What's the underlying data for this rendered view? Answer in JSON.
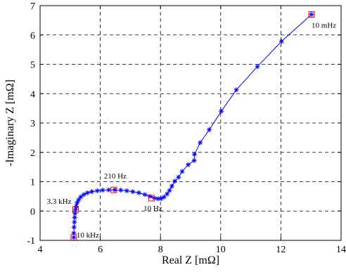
{
  "chart_data": {
    "type": "line",
    "title": "",
    "xlabel": "Real Z [mΩ]",
    "ylabel": "-Imaginary Z [mΩ]",
    "xlim": [
      4,
      14
    ],
    "ylim": [
      -1,
      7
    ],
    "xticks": [
      "4",
      "6",
      "8",
      "10",
      "12",
      "14"
    ],
    "yticks": [
      "-1",
      "0",
      "1",
      "2",
      "3",
      "4",
      "5",
      "6",
      "7"
    ],
    "grid": true,
    "grid_style": "dashed",
    "series": [
      {
        "marker": "asterisk",
        "color": "#0000ff",
        "x": [
          5.12,
          5.12,
          5.13,
          5.14,
          5.15,
          5.16,
          5.18,
          5.2,
          5.23,
          5.28,
          5.35,
          5.45,
          5.57,
          5.72,
          5.9,
          6.08,
          6.28,
          6.48,
          6.68,
          6.88,
          7.08,
          7.28,
          7.48,
          7.65,
          7.8,
          7.92,
          8.02,
          8.12,
          8.22,
          8.3,
          8.38,
          8.48,
          8.6,
          8.72,
          8.92,
          9.12,
          9.13,
          9.32,
          9.62,
          10.02,
          10.52,
          11.22,
          12.02,
          13.02
        ],
        "y": [
          -0.9,
          -0.75,
          -0.55,
          -0.38,
          -0.22,
          -0.08,
          0.05,
          0.16,
          0.28,
          0.38,
          0.48,
          0.56,
          0.62,
          0.66,
          0.69,
          0.71,
          0.72,
          0.72,
          0.71,
          0.69,
          0.66,
          0.62,
          0.56,
          0.5,
          0.44,
          0.42,
          0.42,
          0.48,
          0.58,
          0.7,
          0.85,
          1.02,
          1.15,
          1.35,
          1.58,
          1.72,
          1.93,
          2.33,
          2.77,
          3.4,
          4.13,
          4.92,
          5.78,
          6.7
        ]
      }
    ],
    "highlighted_points": [
      {
        "x": 5.12,
        "y": -0.9,
        "label": "10 kHz"
      },
      {
        "x": 5.18,
        "y": 0.05,
        "label": "3.3 kHz"
      },
      {
        "x": 6.45,
        "y": 0.72,
        "label": "210 Hz"
      },
      {
        "x": 7.7,
        "y": 0.44,
        "label": "10 Hz"
      },
      {
        "x": 13.02,
        "y": 6.7,
        "label": "10 mHz"
      }
    ],
    "highlight_color": "#ff0000"
  }
}
